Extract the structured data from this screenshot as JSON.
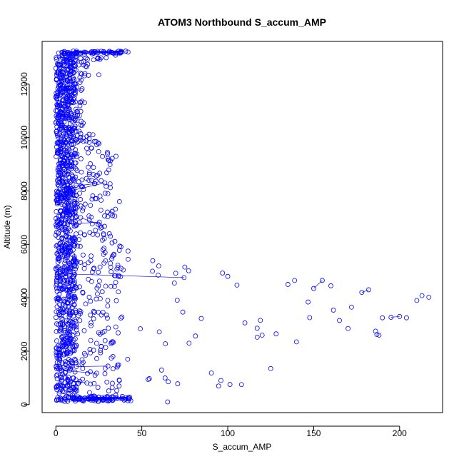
{
  "chart_data": {
    "type": "scatter",
    "title": "ATOM3 Northbound S_accum_AMP",
    "xlabel": "S_accum_AMP",
    "ylabel": "Altitude (m)",
    "xlim": [
      -8,
      225
    ],
    "ylim": [
      -300,
      13600
    ],
    "x_ticks": [
      0,
      50,
      100,
      150,
      200
    ],
    "y_ticks": [
      0,
      2000,
      4000,
      6000,
      8000,
      10000,
      12000
    ],
    "grid": false,
    "legend": "none",
    "series_color": "#0000ff",
    "marker": "open-circle",
    "connect_points": true,
    "density_profile": [
      {
        "altitude": 150,
        "x_max": 40
      },
      {
        "altitude": 300,
        "x_max": 65
      },
      {
        "altitude": 500,
        "x_max": 55
      },
      {
        "altitude": 750,
        "x_max": 108
      },
      {
        "altitude": 1000,
        "x_max": 95
      },
      {
        "altitude": 1300,
        "x_max": 125
      },
      {
        "altitude": 1600,
        "x_max": 100
      },
      {
        "altitude": 2000,
        "x_max": 130
      },
      {
        "altitude": 2300,
        "x_max": 140
      },
      {
        "altitude": 2600,
        "x_max": 188
      },
      {
        "altitude": 2850,
        "x_max": 175
      },
      {
        "altitude": 3100,
        "x_max": 165
      },
      {
        "altitude": 3250,
        "x_max": 203
      },
      {
        "altitude": 3500,
        "x_max": 175
      },
      {
        "altitude": 3700,
        "x_max": 165
      },
      {
        "altitude": 3900,
        "x_max": 200
      },
      {
        "altitude": 4050,
        "x_max": 217
      },
      {
        "altitude": 4300,
        "x_max": 190
      },
      {
        "altitude": 4600,
        "x_max": 160
      },
      {
        "altitude": 4900,
        "x_max": 125
      },
      {
        "altitude": 5200,
        "x_max": 75
      },
      {
        "altitude": 5800,
        "x_max": 42
      },
      {
        "altitude": 6500,
        "x_max": 32
      },
      {
        "altitude": 7500,
        "x_max": 37
      },
      {
        "altitude": 8500,
        "x_max": 30
      },
      {
        "altitude": 9300,
        "x_max": 35
      },
      {
        "altitude": 10000,
        "x_max": 22
      },
      {
        "altitude": 11000,
        "x_max": 18
      },
      {
        "altitude": 12000,
        "x_max": 15
      },
      {
        "altitude": 12800,
        "x_max": 25
      },
      {
        "altitude": 13200,
        "x_max": 42
      }
    ],
    "highlighted_points": [
      {
        "x": 217,
        "y": 4020
      },
      {
        "x": 213,
        "y": 4080
      },
      {
        "x": 210,
        "y": 3900
      },
      {
        "x": 204,
        "y": 3250
      },
      {
        "x": 200,
        "y": 3300
      },
      {
        "x": 195,
        "y": 3270
      },
      {
        "x": 190,
        "y": 3250
      },
      {
        "x": 188,
        "y": 2600
      },
      {
        "x": 186,
        "y": 2750
      },
      {
        "x": 182,
        "y": 4300
      },
      {
        "x": 178,
        "y": 4200
      },
      {
        "x": 172,
        "y": 3650
      },
      {
        "x": 170,
        "y": 2850
      },
      {
        "x": 165,
        "y": 3150
      },
      {
        "x": 160,
        "y": 4450
      },
      {
        "x": 155,
        "y": 4650
      },
      {
        "x": 150,
        "y": 4350
      },
      {
        "x": 140,
        "y": 2350
      },
      {
        "x": 135,
        "y": 4500
      },
      {
        "x": 125,
        "y": 1350
      },
      {
        "x": 120,
        "y": 2600
      },
      {
        "x": 108,
        "y": 750
      },
      {
        "x": 100,
        "y": 4800
      },
      {
        "x": 75,
        "y": 5150
      },
      {
        "x": 65,
        "y": 100
      },
      {
        "x": 42,
        "y": 13200
      },
      {
        "x": 42,
        "y": 5750
      },
      {
        "x": 37,
        "y": 7600
      },
      {
        "x": 35,
        "y": 9300
      },
      {
        "x": 30,
        "y": 9450
      },
      {
        "x": 25,
        "y": 12350
      }
    ]
  }
}
